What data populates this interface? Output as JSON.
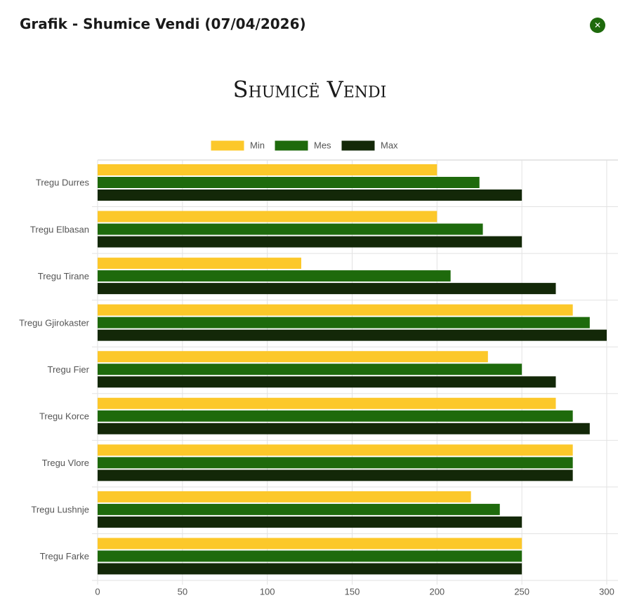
{
  "header": {
    "title": "Grafik - Shumice Vendi (07/04/2026)"
  },
  "chart_data": {
    "type": "hbar",
    "title": "Shumicë Vendi",
    "categories": [
      "Tregu Durres",
      "Tregu Elbasan",
      "Tregu Tirane",
      "Tregu Gjirokaster",
      "Tregu Fier",
      "Tregu Korce",
      "Tregu Vlore",
      "Tregu Lushnje",
      "Tregu Farke"
    ],
    "series": [
      {
        "name": "Min",
        "color": "#fcc82a",
        "values": [
          200,
          200,
          120,
          280,
          230,
          270,
          280,
          220,
          250
        ]
      },
      {
        "name": "Mes",
        "color": "#1e6a0c",
        "values": [
          225,
          227,
          208,
          290,
          250,
          280,
          280,
          237,
          250
        ]
      },
      {
        "name": "Max",
        "color": "#132808",
        "values": [
          250,
          250,
          270,
          300,
          270,
          290,
          280,
          250,
          250
        ]
      }
    ],
    "xlim": [
      0,
      300
    ],
    "xticks": [
      0,
      50,
      100,
      150,
      200,
      250,
      300
    ],
    "grid": true,
    "legend": "top"
  }
}
